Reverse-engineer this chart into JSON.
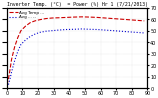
{
  "title": "Inverter Temp. (°C)  = Power (%) Hr 1 (7/21/2013)",
  "legend_red": "Avg Temp ...",
  "legend_blue": "Avg ... --",
  "fig_bg": "#ffffff",
  "plot_bg": "#ffffff",
  "grid_color": "#c8c8c8",
  "red_color": "#cc0000",
  "blue_color": "#0000cc",
  "xlim": [
    0,
    90
  ],
  "ylim_left": [
    0,
    70
  ],
  "ylim_right": [
    0,
    70
  ],
  "red_x": [
    0,
    1,
    2,
    3,
    5,
    7,
    9,
    12,
    15,
    18,
    21,
    25,
    29,
    33,
    38,
    43,
    48,
    53,
    58,
    63,
    68,
    73,
    78,
    83,
    88
  ],
  "red_y": [
    3,
    8,
    16,
    25,
    36,
    44,
    50,
    54,
    57,
    58.5,
    59.5,
    60.5,
    61,
    61.2,
    61.5,
    61.8,
    62,
    61.8,
    61.5,
    61,
    60.5,
    60,
    59.5,
    59,
    58.5
  ],
  "blue_x": [
    0,
    1,
    2,
    3,
    5,
    7,
    9,
    12,
    15,
    18,
    21,
    25,
    29,
    33,
    38,
    43,
    48,
    53,
    58,
    63,
    68,
    73,
    78,
    83,
    88
  ],
  "blue_y": [
    1,
    3,
    8,
    14,
    24,
    32,
    38,
    42,
    45,
    47,
    48.5,
    49.5,
    50,
    50.5,
    51,
    51.2,
    51.5,
    51.2,
    51,
    50.5,
    50,
    49.5,
    49,
    48.5,
    48
  ],
  "xtick_step": 10,
  "ytick_step": 10,
  "title_fontsize": 3.5,
  "tick_fontsize": 3.5,
  "legend_fontsize": 3.0,
  "linewidth": 0.8
}
